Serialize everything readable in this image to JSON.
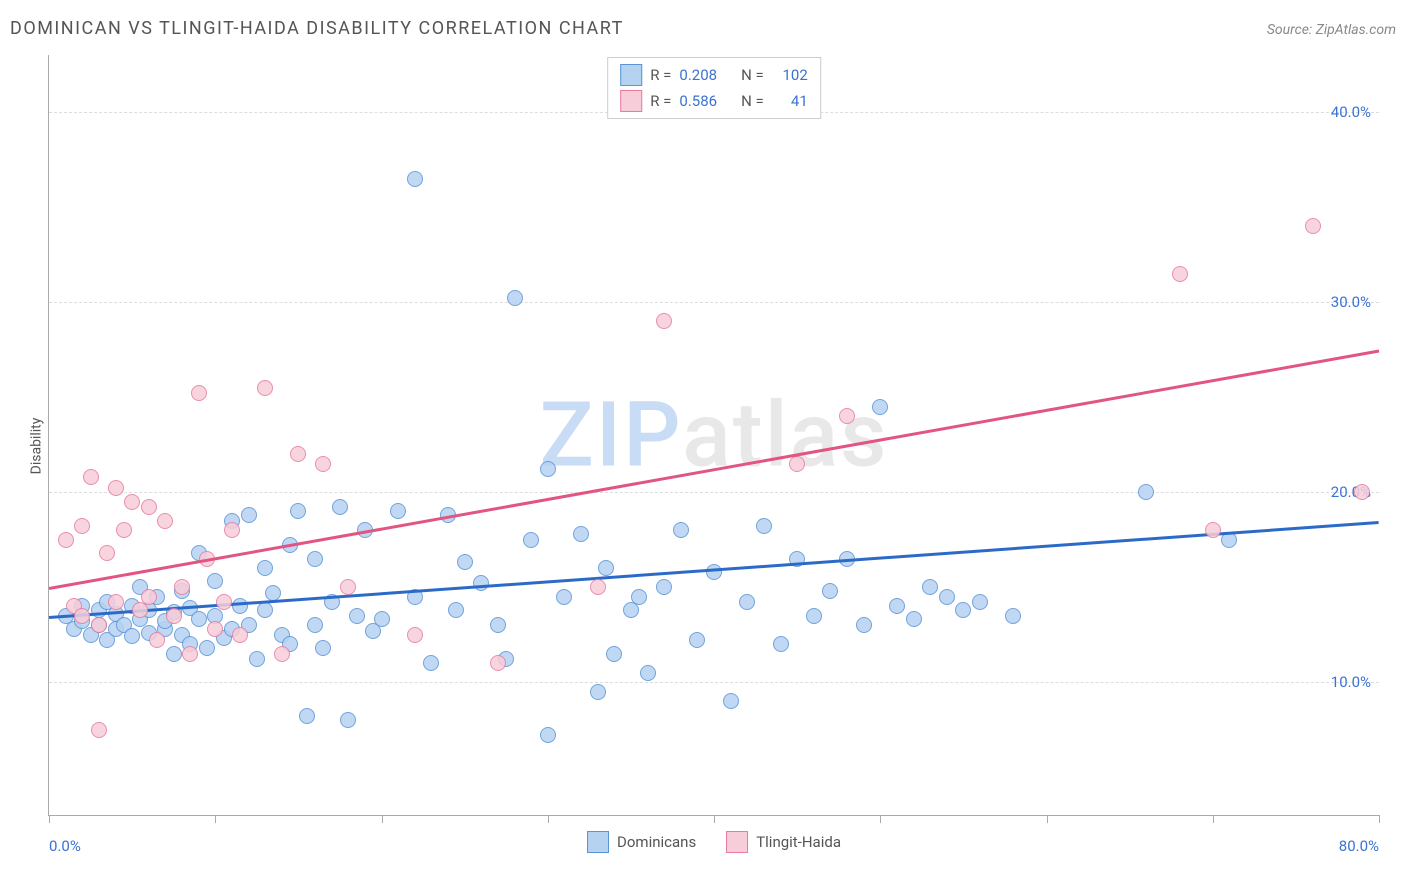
{
  "title": "DOMINICAN VS TLINGIT-HAIDA DISABILITY CORRELATION CHART",
  "source": "Source: ZipAtlas.com",
  "ylabel": "Disability",
  "watermark": "ZIPatlas",
  "watermark_colors": {
    "zip": "#c8dcf5",
    "atlas": "#e8e8e8"
  },
  "background_color": "#ffffff",
  "grid_color": "#dddddd",
  "axis_color": "#aaaaaa",
  "value_color": "#3a72d4",
  "xlim": [
    0,
    80
  ],
  "ylim": [
    3,
    43
  ],
  "x_ticks": [
    0,
    10,
    20,
    30,
    40,
    50,
    60,
    70,
    80
  ],
  "x_tick_labels": {
    "0": "0.0%",
    "80": "80.0%"
  },
  "y_gridlines": [
    10,
    20,
    30,
    40
  ],
  "y_tick_labels": {
    "10": "10.0%",
    "20": "20.0%",
    "30": "30.0%",
    "40": "40.0%"
  },
  "series": [
    {
      "name": "Dominicans",
      "fill": "#b6d2f1",
      "stroke": "#5a93d6",
      "r": "0.208",
      "n": "102",
      "trend": {
        "x1": 0,
        "y1": 13.5,
        "x2": 80,
        "y2": 18.5,
        "color": "#2b6bc7"
      },
      "points": [
        [
          1,
          13.5
        ],
        [
          1.5,
          12.8
        ],
        [
          2,
          13.2
        ],
        [
          2,
          14
        ],
        [
          2.5,
          12.5
        ],
        [
          3,
          13.8
        ],
        [
          3,
          13
        ],
        [
          3.5,
          14.2
        ],
        [
          3.5,
          12.2
        ],
        [
          4,
          13.6
        ],
        [
          4,
          12.8
        ],
        [
          4.5,
          13
        ],
        [
          5,
          14
        ],
        [
          5,
          12.4
        ],
        [
          5.5,
          15
        ],
        [
          5.5,
          13.3
        ],
        [
          6,
          13.8
        ],
        [
          6,
          12.6
        ],
        [
          6.5,
          14.5
        ],
        [
          7,
          12.8
        ],
        [
          7,
          13.2
        ],
        [
          7.5,
          13.7
        ],
        [
          7.5,
          11.5
        ],
        [
          8,
          12.5
        ],
        [
          8,
          14.8
        ],
        [
          8.5,
          13.9
        ],
        [
          8.5,
          12
        ],
        [
          9,
          16.8
        ],
        [
          9,
          13.3
        ],
        [
          9.5,
          11.8
        ],
        [
          10,
          13.5
        ],
        [
          10,
          15.3
        ],
        [
          10.5,
          12.3
        ],
        [
          11,
          18.5
        ],
        [
          11,
          12.8
        ],
        [
          11.5,
          14
        ],
        [
          12,
          13
        ],
        [
          12,
          18.8
        ],
        [
          12.5,
          11.2
        ],
        [
          13,
          16
        ],
        [
          13,
          13.8
        ],
        [
          13.5,
          14.7
        ],
        [
          14,
          12.5
        ],
        [
          14.5,
          17.2
        ],
        [
          14.5,
          12
        ],
        [
          15,
          19
        ],
        [
          15.5,
          8.2
        ],
        [
          16,
          16.5
        ],
        [
          16,
          13
        ],
        [
          16.5,
          11.8
        ],
        [
          17,
          14.2
        ],
        [
          17.5,
          19.2
        ],
        [
          18,
          8
        ],
        [
          18.5,
          13.5
        ],
        [
          19,
          18
        ],
        [
          19.5,
          12.7
        ],
        [
          20,
          13.3
        ],
        [
          21,
          19
        ],
        [
          22,
          14.5
        ],
        [
          22,
          36.5
        ],
        [
          23,
          11
        ],
        [
          24,
          18.8
        ],
        [
          24.5,
          13.8
        ],
        [
          25,
          16.3
        ],
        [
          26,
          15.2
        ],
        [
          27,
          13
        ],
        [
          27.5,
          11.2
        ],
        [
          28,
          30.2
        ],
        [
          29,
          17.5
        ],
        [
          30,
          21.2
        ],
        [
          30,
          7.2
        ],
        [
          31,
          14.5
        ],
        [
          32,
          17.8
        ],
        [
          33,
          9.5
        ],
        [
          33.5,
          16
        ],
        [
          34,
          11.5
        ],
        [
          35,
          13.8
        ],
        [
          35.5,
          14.5
        ],
        [
          36,
          10.5
        ],
        [
          37,
          15
        ],
        [
          38,
          18
        ],
        [
          39,
          12.2
        ],
        [
          40,
          15.8
        ],
        [
          41,
          9
        ],
        [
          42,
          14.2
        ],
        [
          43,
          18.2
        ],
        [
          44,
          12
        ],
        [
          45,
          16.5
        ],
        [
          46,
          13.5
        ],
        [
          47,
          14.8
        ],
        [
          48,
          16.5
        ],
        [
          49,
          13
        ],
        [
          50,
          24.5
        ],
        [
          51,
          14
        ],
        [
          52,
          13.3
        ],
        [
          53,
          15
        ],
        [
          54,
          14.5
        ],
        [
          55,
          13.8
        ],
        [
          56,
          14.2
        ],
        [
          58,
          13.5
        ],
        [
          66,
          20
        ],
        [
          71,
          17.5
        ]
      ]
    },
    {
      "name": "Tlingit-Haida",
      "fill": "#f7cdd9",
      "stroke": "#e77ba0",
      "r": "0.586",
      "n": "41",
      "trend": {
        "x1": 0,
        "y1": 15,
        "x2": 80,
        "y2": 27.5,
        "color": "#e25580"
      },
      "points": [
        [
          1,
          17.5
        ],
        [
          1.5,
          14
        ],
        [
          2,
          13.5
        ],
        [
          2,
          18.2
        ],
        [
          2.5,
          20.8
        ],
        [
          3,
          13
        ],
        [
          3,
          7.5
        ],
        [
          3.5,
          16.8
        ],
        [
          4,
          14.2
        ],
        [
          4,
          20.2
        ],
        [
          4.5,
          18
        ],
        [
          5,
          19.5
        ],
        [
          5.5,
          13.8
        ],
        [
          6,
          14.5
        ],
        [
          6,
          19.2
        ],
        [
          6.5,
          12.2
        ],
        [
          7,
          18.5
        ],
        [
          7.5,
          13.5
        ],
        [
          8,
          15
        ],
        [
          8.5,
          11.5
        ],
        [
          9,
          25.2
        ],
        [
          9.5,
          16.5
        ],
        [
          10,
          12.8
        ],
        [
          10.5,
          14.2
        ],
        [
          11,
          18
        ],
        [
          11.5,
          12.5
        ],
        [
          13,
          25.5
        ],
        [
          14,
          11.5
        ],
        [
          15,
          22
        ],
        [
          16.5,
          21.5
        ],
        [
          18,
          15
        ],
        [
          22,
          12.5
        ],
        [
          27,
          11
        ],
        [
          33,
          15
        ],
        [
          37,
          29
        ],
        [
          45,
          21.5
        ],
        [
          48,
          24
        ],
        [
          68,
          31.5
        ],
        [
          70,
          18
        ],
        [
          76,
          34
        ],
        [
          79,
          20
        ]
      ]
    }
  ]
}
